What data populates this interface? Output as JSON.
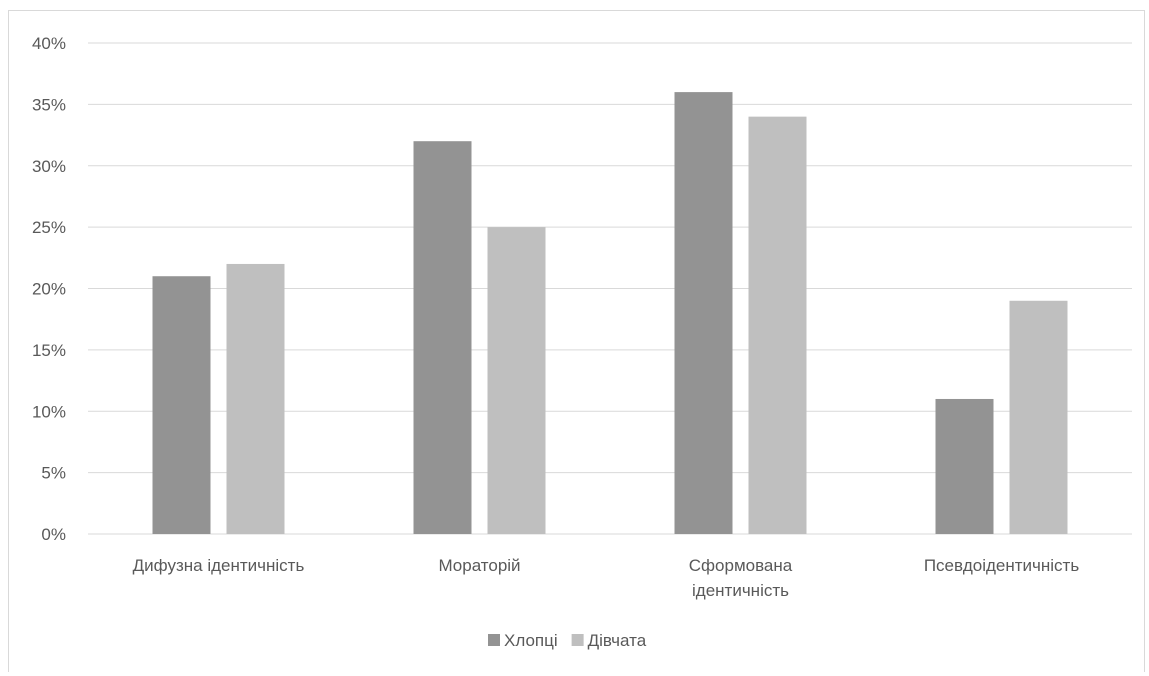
{
  "chart_data": {
    "type": "bar",
    "title": "",
    "xlabel": "",
    "ylabel": "",
    "categories": [
      [
        "Дифузна ідентичність"
      ],
      [
        "Мораторій"
      ],
      [
        "Сформована",
        "ідентичність"
      ],
      [
        "Псевдоідентичність"
      ]
    ],
    "series": [
      {
        "name": "Хлопці",
        "values": [
          21,
          32,
          36,
          11
        ],
        "color": "#939393"
      },
      {
        "name": "Дівчата",
        "values": [
          22,
          25,
          34,
          19
        ],
        "color": "#bfbfbf"
      }
    ],
    "ylim": [
      0,
      40
    ],
    "yticks": [
      0,
      5,
      10,
      15,
      20,
      25,
      30,
      35,
      40
    ],
    "ytick_suffix": "%",
    "grid": true,
    "gridline_color": "#d9d9d9",
    "legend_position": "bottom"
  }
}
